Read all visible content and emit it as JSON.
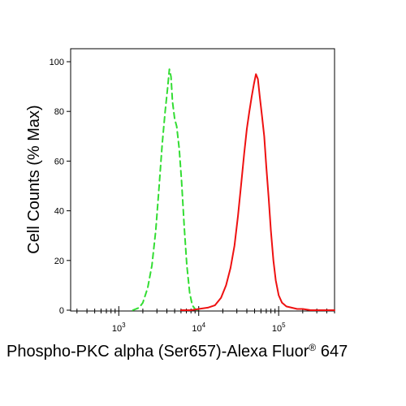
{
  "chart_data": {
    "type": "line",
    "title": "",
    "xlabel": "Phospho-PKC alpha (Ser657)-Alexa Fluor",
    "xlabel_mark": "®",
    "xlabel_suffix": " 647",
    "ylabel": "Cell Counts (% Max)",
    "x_scale": "log",
    "xlim": [
      250,
      500000
    ],
    "ylim": [
      0,
      100
    ],
    "x_ticks": [
      {
        "base": "10",
        "exp": "3",
        "value": 1000
      },
      {
        "base": "10",
        "exp": "4",
        "value": 10000
      },
      {
        "base": "10",
        "exp": "5",
        "value": 100000
      }
    ],
    "y_ticks": [
      "0",
      "20",
      "40",
      "60",
      "80",
      "100"
    ],
    "grid": false,
    "series": [
      {
        "color": "#33dd33",
        "style": "dashed",
        "x": [
          1500,
          1800,
          2000,
          2300,
          2600,
          2900,
          3200,
          3500,
          3800,
          4100,
          4300,
          4500,
          4700,
          5000,
          5300,
          5700,
          6100,
          6600,
          7100,
          7700,
          8300,
          9000,
          9800
        ],
        "y": [
          0,
          1,
          3,
          9,
          18,
          32,
          50,
          67,
          80,
          90,
          97,
          94,
          84,
          77,
          74,
          65,
          52,
          33,
          18,
          7,
          2,
          0.5,
          0
        ]
      },
      {
        "color": "#ee1111",
        "style": "solid",
        "x": [
          6000,
          8000,
          10000,
          13000,
          16000,
          19000,
          22000,
          25000,
          28000,
          31000,
          34000,
          37000,
          40000,
          43000,
          46000,
          49000,
          52000,
          55000,
          58000,
          62000,
          66000,
          70000,
          75000,
          80000,
          86000,
          92000,
          100000,
          110000,
          125000,
          145000,
          170000,
          200000,
          250000,
          300000,
          400000,
          500000
        ],
        "y": [
          0,
          0,
          0.5,
          1,
          2,
          5,
          10,
          17,
          26,
          38,
          51,
          63,
          73,
          80,
          86,
          91,
          95,
          93,
          86,
          78,
          70,
          58,
          45,
          32,
          20,
          12,
          6,
          3,
          1.5,
          1,
          0.5,
          0.5,
          0,
          0,
          0,
          0
        ]
      }
    ]
  }
}
